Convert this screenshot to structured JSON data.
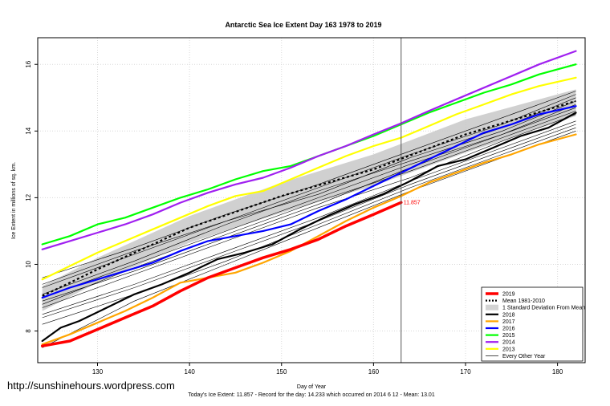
{
  "page": {
    "website": "http://sunshinehours.wordpress.com"
  },
  "chart_data": {
    "type": "line",
    "title": "Antarctic Sea Ice Extent Day 163 1978 to 2019",
    "xlabel": "Day of Year",
    "ylabel": "Ice Extent in millions of sq. km.",
    "footer": "Today's Ice Extent: 11.857 - Record for the day: 14.233 which occurred on 2014 6 12 - Mean: 13.01",
    "xlim": [
      123.5,
      183
    ],
    "ylim": [
      7.05,
      16.8
    ],
    "x_ticks": [
      "130",
      "140",
      "150",
      "160",
      "170",
      "180"
    ],
    "y_ticks": [
      "8",
      "10",
      "12",
      "14",
      "16"
    ],
    "current_day": 163,
    "current_value_label": "11.857",
    "legend_position": "bottom-right",
    "legend": [
      {
        "label": "2019",
        "color": "#ff0000",
        "style": "thick"
      },
      {
        "label": "Mean 1981-2010",
        "color": "#000000",
        "style": "dotted"
      },
      {
        "label": "1 Standard Deviation From Mean",
        "color": "#d3d3d3",
        "style": "band"
      },
      {
        "label": "2018",
        "color": "#000000",
        "style": "line"
      },
      {
        "label": "2017",
        "color": "#ffa500",
        "style": "line"
      },
      {
        "label": "2016",
        "color": "#0000ff",
        "style": "line"
      },
      {
        "label": "2015",
        "color": "#00ff00",
        "style": "line"
      },
      {
        "label": "2014",
        "color": "#a020f0",
        "style": "line"
      },
      {
        "label": "2013",
        "color": "#ffff00",
        "style": "line"
      },
      {
        "label": "Every Other Year",
        "color": "#000000",
        "style": "thin"
      }
    ],
    "mean": {
      "x": [
        124,
        130,
        140,
        150,
        160,
        170,
        182
      ],
      "y": [
        9.05,
        9.85,
        11.1,
        12.05,
        12.85,
        13.9,
        14.9
      ]
    },
    "std_band": {
      "x": [
        124,
        130,
        140,
        150,
        160,
        170,
        182
      ],
      "upper": [
        9.35,
        10.2,
        11.45,
        12.45,
        13.3,
        14.35,
        15.25
      ],
      "lower": [
        8.6,
        9.45,
        10.65,
        11.55,
        12.35,
        13.35,
        14.45
      ]
    },
    "series": [
      {
        "name": "2019",
        "color": "#ff0000",
        "width": 3.5,
        "x": [
          124,
          127,
          130,
          133,
          136,
          139,
          142,
          145,
          148,
          151,
          154,
          157,
          160,
          163
        ],
        "y": [
          7.55,
          7.7,
          8.05,
          8.4,
          8.75,
          9.2,
          9.6,
          9.9,
          10.2,
          10.45,
          10.75,
          11.15,
          11.5,
          11.857
        ]
      },
      {
        "name": "2018",
        "color": "#000000",
        "width": 2.2,
        "x": [
          124,
          126,
          128,
          131,
          134,
          137,
          140,
          143,
          146,
          149,
          152,
          155,
          158,
          161,
          164,
          167,
          170,
          173,
          176,
          179,
          182
        ],
        "y": [
          7.7,
          8.1,
          8.3,
          8.7,
          9.1,
          9.4,
          9.75,
          10.15,
          10.35,
          10.6,
          11.05,
          11.45,
          11.8,
          12.1,
          12.5,
          12.95,
          13.15,
          13.5,
          13.85,
          14.1,
          14.55
        ]
      },
      {
        "name": "2017",
        "color": "#ffa500",
        "width": 2.2,
        "x": [
          124,
          127,
          130,
          133,
          136,
          139,
          142,
          145,
          148,
          151,
          154,
          157,
          160,
          163,
          166,
          169,
          172,
          175,
          178,
          182
        ],
        "y": [
          7.6,
          7.9,
          8.25,
          8.6,
          9.0,
          9.45,
          9.6,
          9.75,
          10.05,
          10.4,
          10.85,
          11.3,
          11.7,
          12.05,
          12.45,
          12.75,
          13.05,
          13.3,
          13.6,
          13.9
        ]
      },
      {
        "name": "2016",
        "color": "#0000ff",
        "width": 2.2,
        "x": [
          124,
          127,
          130,
          133,
          136,
          139,
          142,
          145,
          148,
          151,
          154,
          157,
          160,
          163,
          166,
          169,
          172,
          175,
          178,
          182
        ],
        "y": [
          9.0,
          9.3,
          9.55,
          9.8,
          10.05,
          10.4,
          10.7,
          10.85,
          11.0,
          11.2,
          11.6,
          11.95,
          12.35,
          12.75,
          13.15,
          13.55,
          13.95,
          14.2,
          14.5,
          14.75
        ]
      },
      {
        "name": "2015",
        "color": "#00ff00",
        "width": 2.2,
        "x": [
          124,
          127,
          130,
          133,
          136,
          139,
          142,
          145,
          148,
          151,
          154,
          157,
          160,
          163,
          166,
          169,
          172,
          175,
          178,
          182
        ],
        "y": [
          10.6,
          10.85,
          11.2,
          11.4,
          11.7,
          12.0,
          12.25,
          12.55,
          12.8,
          12.95,
          13.25,
          13.55,
          13.85,
          14.2,
          14.55,
          14.85,
          15.15,
          15.4,
          15.7,
          16.0
        ]
      },
      {
        "name": "2014",
        "color": "#a020f0",
        "width": 2.2,
        "x": [
          124,
          127,
          130,
          133,
          136,
          139,
          142,
          145,
          148,
          151,
          154,
          157,
          160,
          163,
          166,
          169,
          172,
          175,
          178,
          182
        ],
        "y": [
          10.45,
          10.7,
          10.95,
          11.2,
          11.5,
          11.85,
          12.15,
          12.4,
          12.6,
          12.9,
          13.25,
          13.55,
          13.9,
          14.233,
          14.6,
          14.95,
          15.3,
          15.65,
          16.0,
          16.4
        ]
      },
      {
        "name": "2013",
        "color": "#ffff00",
        "width": 2.2,
        "x": [
          124,
          127,
          130,
          133,
          136,
          139,
          142,
          145,
          148,
          151,
          154,
          157,
          160,
          163,
          166,
          169,
          172,
          175,
          178,
          182
        ],
        "y": [
          9.55,
          9.95,
          10.35,
          10.7,
          11.05,
          11.4,
          11.75,
          12.05,
          12.2,
          12.55,
          12.9,
          13.25,
          13.55,
          13.8,
          14.15,
          14.5,
          14.8,
          15.1,
          15.35,
          15.6
        ]
      }
    ],
    "other_years": [
      {
        "x": [
          124,
          134,
          144,
          154,
          164,
          174,
          182
        ],
        "y": [
          8.5,
          9.4,
          10.4,
          11.4,
          12.5,
          13.5,
          14.3
        ]
      },
      {
        "x": [
          124,
          134,
          144,
          154,
          164,
          174,
          182
        ],
        "y": [
          9.3,
          10.3,
          11.3,
          12.1,
          13.2,
          14.1,
          15.0
        ]
      },
      {
        "x": [
          124,
          134,
          144,
          154,
          164,
          174,
          182
        ],
        "y": [
          8.8,
          9.9,
          10.9,
          11.9,
          12.8,
          13.8,
          14.6
        ]
      },
      {
        "x": [
          124,
          134,
          144,
          154,
          164,
          174,
          182
        ],
        "y": [
          9.6,
          10.5,
          11.5,
          12.4,
          13.4,
          14.4,
          15.2
        ]
      },
      {
        "x": [
          124,
          134,
          144,
          154,
          164,
          174,
          182
        ],
        "y": [
          8.2,
          9.1,
          10.1,
          11.2,
          12.3,
          13.3,
          14.1
        ]
      },
      {
        "x": [
          124,
          134,
          144,
          154,
          164,
          174,
          182
        ],
        "y": [
          9.0,
          10.0,
          11.0,
          12.0,
          13.0,
          13.9,
          14.8
        ]
      },
      {
        "x": [
          124,
          134,
          144,
          154,
          164,
          174,
          182
        ],
        "y": [
          8.7,
          9.7,
          10.7,
          11.7,
          12.6,
          13.7,
          14.5
        ]
      },
      {
        "x": [
          124,
          134,
          144,
          154,
          164,
          174,
          182
        ],
        "y": [
          9.4,
          10.4,
          11.3,
          12.3,
          13.3,
          14.2,
          15.1
        ]
      },
      {
        "x": [
          124,
          134,
          144,
          154,
          164,
          174,
          182
        ],
        "y": [
          8.4,
          9.3,
          10.3,
          11.3,
          12.4,
          13.4,
          14.2
        ]
      },
      {
        "x": [
          124,
          134,
          144,
          154,
          164,
          174,
          182
        ],
        "y": [
          9.1,
          10.1,
          11.2,
          12.2,
          13.1,
          14.0,
          14.9
        ]
      },
      {
        "x": [
          124,
          134,
          144,
          154,
          164,
          174,
          182
        ],
        "y": [
          8.9,
          9.8,
          10.8,
          11.8,
          12.9,
          13.9,
          14.7
        ]
      },
      {
        "x": [
          124,
          134,
          144,
          154,
          164,
          174,
          182
        ],
        "y": [
          7.5,
          8.9,
          10.0,
          11.1,
          12.2,
          13.2,
          14.0
        ]
      }
    ]
  }
}
